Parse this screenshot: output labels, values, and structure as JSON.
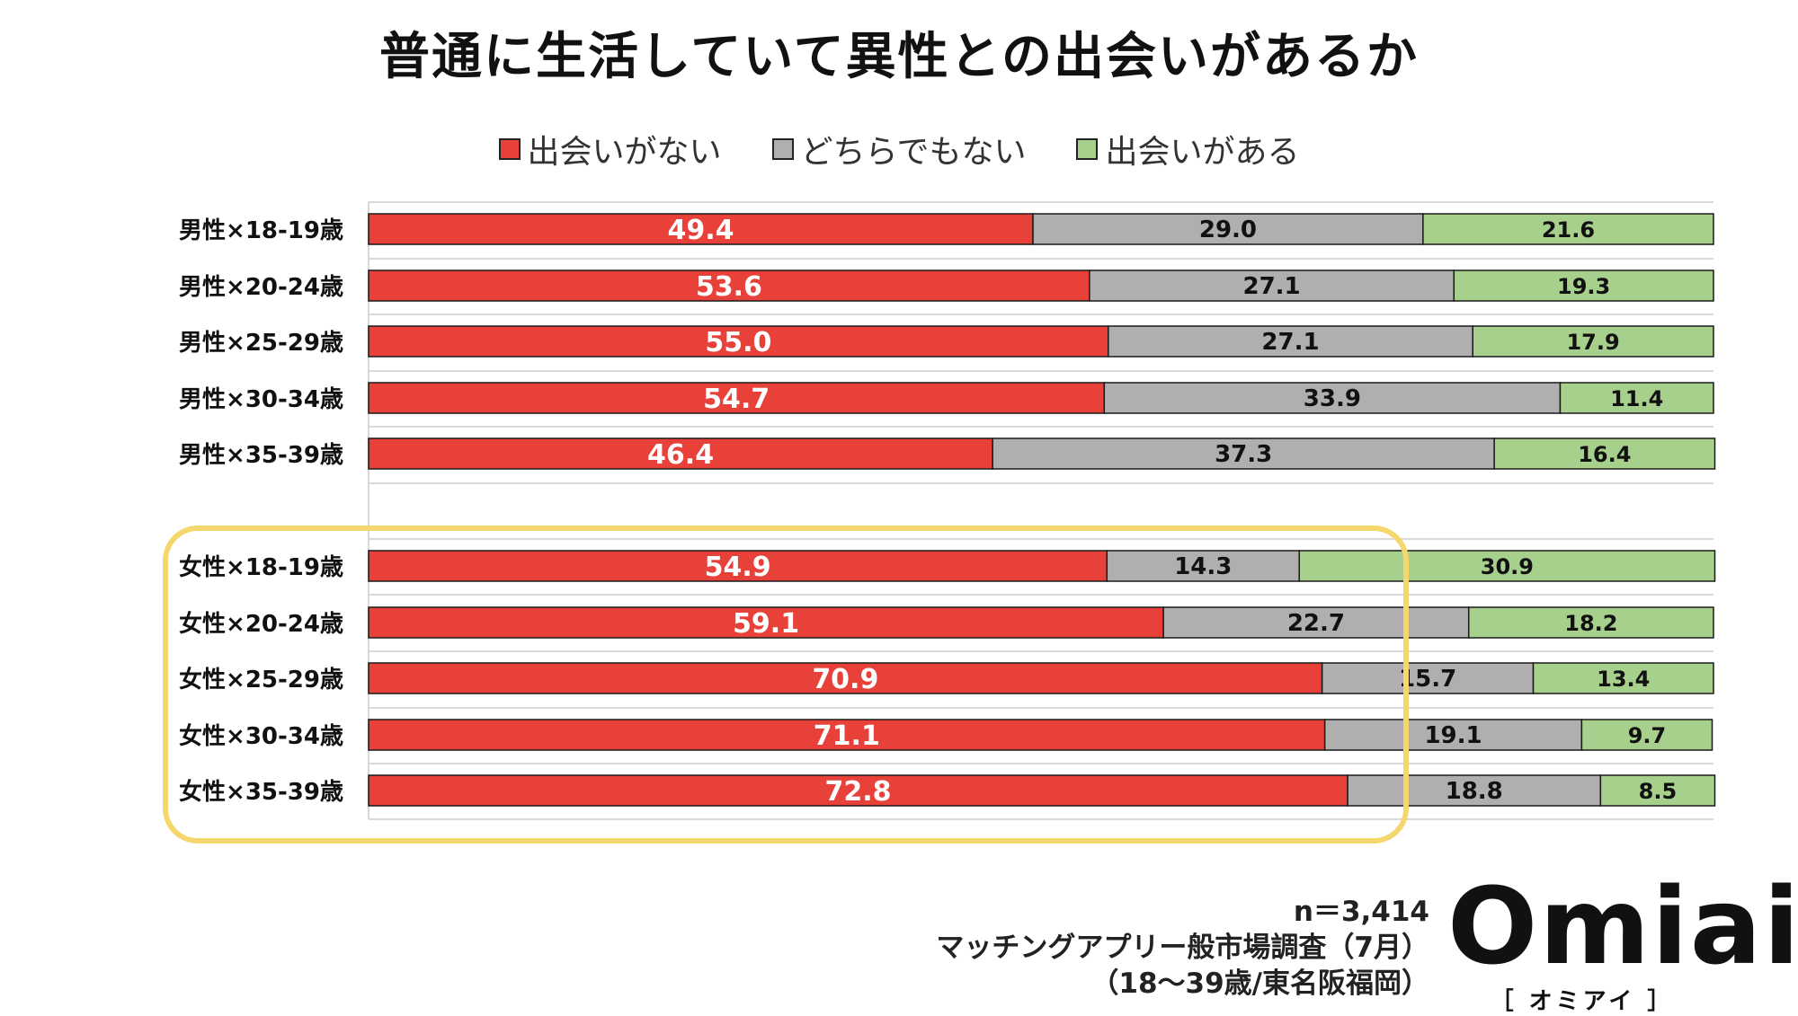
{
  "chart_data": {
    "type": "bar",
    "stacked": true,
    "orientation": "horizontal",
    "title": "普通に生活していて異性との出会いがあるか",
    "categories": [
      "男性×18-19歳",
      "男性×20-24歳",
      "男性×25-29歳",
      "男性×30-34歳",
      "男性×35-39歳",
      "女性×18-19歳",
      "女性×20-24歳",
      "女性×25-29歳",
      "女性×30-34歳",
      "女性×35-39歳"
    ],
    "series": [
      {
        "name": "出会いがない",
        "color": "#e8413a",
        "values": [
          49.4,
          53.6,
          55.0,
          54.7,
          46.4,
          54.9,
          59.1,
          70.9,
          71.1,
          72.8
        ]
      },
      {
        "name": "どちらでもない",
        "color": "#b0aeae",
        "values": [
          29.0,
          27.1,
          27.1,
          33.9,
          37.3,
          14.3,
          22.7,
          15.7,
          19.1,
          18.8
        ]
      },
      {
        "name": "出会いがある",
        "color": "#a8d08d",
        "values": [
          21.6,
          19.3,
          17.9,
          11.4,
          16.4,
          30.9,
          18.2,
          13.4,
          9.7,
          8.5
        ]
      }
    ],
    "xlim": [
      0,
      100
    ],
    "xlabel": "",
    "ylabel": "",
    "grid": true,
    "legend": "top-center",
    "highlight": "女性 groups outlined in yellow"
  },
  "footer": {
    "n": "n＝3,414",
    "survey": "マッチングアプリー般市場調査（7月）",
    "scope": "（18～39歳/東名阪福岡）"
  },
  "logo": {
    "word": "Omiai",
    "kana": "［ オミアイ ］"
  },
  "colors": {
    "highlight_border": "#f5d76e",
    "text_dark": "#111111"
  }
}
